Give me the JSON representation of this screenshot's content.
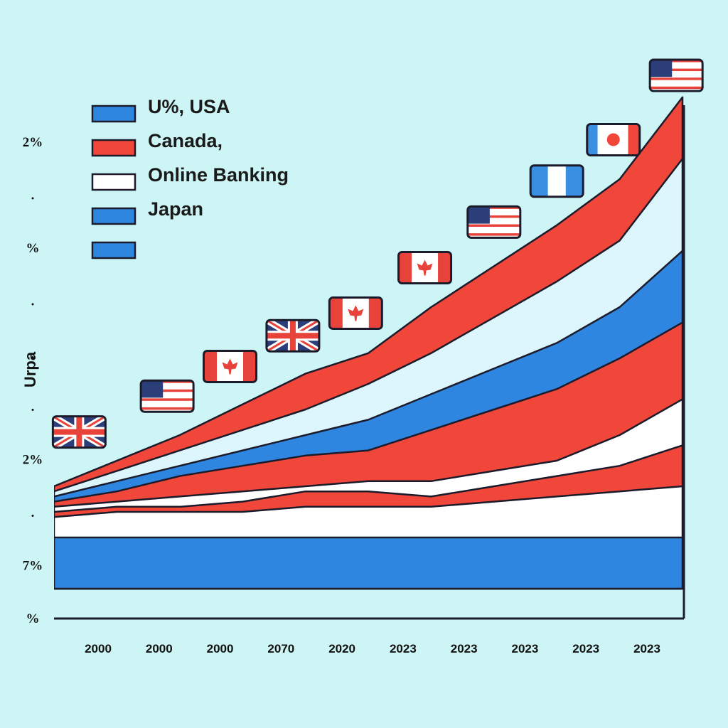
{
  "chart_data": {
    "type": "area",
    "title": "",
    "xlabel": "",
    "ylabel": "Urpa",
    "x_tick_labels": [
      "2000",
      "2000",
      "2000",
      "2070",
      "2020",
      "2023",
      "2023",
      "2023",
      "2023",
      "2023"
    ],
    "y_tick_labels": [
      "2%",
      ".",
      "%",
      ".",
      ".",
      ".",
      "2%",
      ".",
      "7%",
      "%"
    ],
    "legend": {
      "placement": "top-left",
      "entries": [
        {
          "label": "U%, USA",
          "color": "#2f86e0"
        },
        {
          "label": "Canada,",
          "color": "#f0473a"
        },
        {
          "label": "Online Banking",
          "color": "#ffffff"
        },
        {
          "label": "Japan",
          "color": "#2f86e0"
        },
        {
          "label": "",
          "color": "#2f86e0"
        }
      ]
    },
    "ylim": [
      0,
      10
    ],
    "grid": false,
    "series": [
      {
        "color": "#2f86e0",
        "values": [
          1.0,
          1.0,
          1.0,
          1.0,
          1.0,
          1.0,
          1.0,
          1.0,
          1.0,
          1.0,
          1.0
        ]
      },
      {
        "color": "#ffffff",
        "values": [
          1.4,
          1.5,
          1.5,
          1.5,
          1.6,
          1.6,
          1.6,
          1.7,
          1.8,
          1.9,
          2.0
        ]
      },
      {
        "color": "#f0473a",
        "values": [
          1.5,
          1.6,
          1.6,
          1.7,
          1.9,
          1.9,
          1.8,
          2.0,
          2.2,
          2.4,
          2.8
        ]
      },
      {
        "color": "#ffffff",
        "values": [
          1.6,
          1.7,
          1.8,
          1.9,
          2.0,
          2.1,
          2.1,
          2.3,
          2.5,
          3.0,
          3.7
        ]
      },
      {
        "color": "#f0473a",
        "values": [
          1.7,
          1.9,
          2.2,
          2.4,
          2.6,
          2.7,
          3.1,
          3.5,
          3.9,
          4.5,
          5.2
        ]
      },
      {
        "color": "#2f86e0",
        "values": [
          1.8,
          2.1,
          2.4,
          2.7,
          3.0,
          3.3,
          3.8,
          4.3,
          4.8,
          5.5,
          6.6
        ]
      },
      {
        "color": "#ddf6fb",
        "values": [
          1.9,
          2.3,
          2.7,
          3.1,
          3.5,
          4.0,
          4.6,
          5.3,
          6.0,
          6.8,
          8.4
        ]
      },
      {
        "color": "#f0473a",
        "values": [
          2.0,
          2.5,
          3.0,
          3.6,
          4.2,
          4.6,
          5.5,
          6.3,
          7.1,
          8.0,
          9.6
        ]
      }
    ],
    "flags": [
      {
        "country": "United Kingdom",
        "index": 0.4
      },
      {
        "country": "USA",
        "index": 1.8
      },
      {
        "country": "Canada",
        "index": 2.8
      },
      {
        "country": "United Kingdom",
        "index": 3.8
      },
      {
        "country": "Canada",
        "index": 4.8
      },
      {
        "country": "Canada",
        "index": 5.9
      },
      {
        "country": "USA",
        "index": 7.0
      },
      {
        "country": "Argentina",
        "index": 8.0
      },
      {
        "country": "Japan",
        "index": 8.9
      },
      {
        "country": "USA",
        "index": 9.9
      }
    ]
  }
}
